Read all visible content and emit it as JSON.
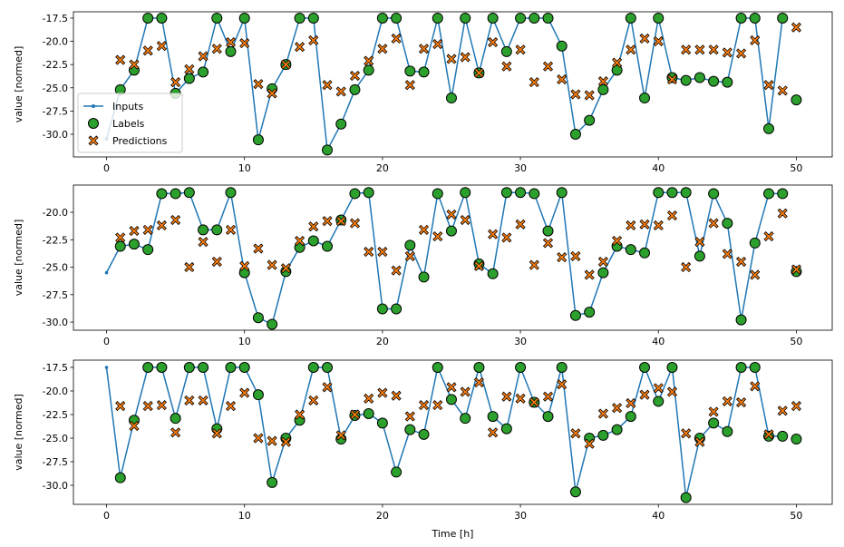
{
  "legend": {
    "inputs": "Inputs",
    "labels": "Labels",
    "predictions": "Predictions"
  },
  "colors": {
    "inputs": "#1f77b4",
    "labels": "#2ca02c",
    "predictions": "#ff7f0e",
    "edge": "#000000"
  },
  "chart_data": [
    {
      "type": "line",
      "xlabel": "",
      "ylabel": "value [normed]",
      "xlim": [
        -2.4,
        52.6
      ],
      "ylim": [
        -32.44,
        -16.82
      ],
      "xticks": [
        0,
        10,
        20,
        30,
        40,
        50
      ],
      "xtick_labels": [
        "0",
        "10",
        "20",
        "30",
        "40",
        "50"
      ],
      "yticks": [
        -17.5,
        -20,
        -22.5,
        -25,
        -27.5,
        -30
      ],
      "ytick_labels": [
        "-17.5",
        "-20.0",
        "-22.5",
        "-25.0",
        "-27.5",
        "-30.0"
      ],
      "legend_placement": "lower-left",
      "series": [
        {
          "name": "Inputs",
          "x_start": 0,
          "values": [
            -30.5,
            -25.2,
            -23.1,
            -17.5,
            -17.5,
            -25.6,
            -24.0,
            -23.3,
            -17.5,
            -21.1,
            -17.5,
            -30.6,
            -25.1,
            -22.5,
            -17.5,
            -17.5,
            -31.7,
            -28.9,
            -25.2,
            -23.1,
            -17.5,
            -17.5,
            -23.2,
            -23.3,
            -17.5,
            -26.1,
            -17.5,
            -23.4,
            -17.5,
            -21.1,
            -17.5,
            -17.5,
            -17.5,
            -20.5,
            -30.0,
            -28.5,
            -25.2,
            -23.1,
            -17.5,
            -26.1,
            -17.5,
            -23.9,
            -24.2,
            -23.9,
            -24.3,
            -24.4,
            -17.5,
            -17.5,
            -29.4,
            -17.5
          ]
        },
        {
          "name": "Labels",
          "x_start": 1,
          "values": [
            -25.2,
            -23.1,
            -17.5,
            -17.5,
            -25.6,
            -24.0,
            -23.3,
            -17.5,
            -21.1,
            -17.5,
            -30.6,
            -25.1,
            -22.5,
            -17.5,
            -17.5,
            -31.7,
            -28.9,
            -25.2,
            -23.1,
            -17.5,
            -17.5,
            -23.2,
            -23.3,
            -17.5,
            -26.1,
            -17.5,
            -23.4,
            -17.5,
            -21.1,
            -17.5,
            -17.5,
            -17.5,
            -20.5,
            -30.0,
            -28.5,
            -25.2,
            -23.1,
            -17.5,
            -26.1,
            -17.5,
            -23.9,
            -24.2,
            -23.9,
            -24.3,
            -24.4,
            -17.5,
            -17.5,
            -29.4,
            -17.5,
            -26.3
          ]
        },
        {
          "name": "Predictions",
          "x_start": 1,
          "values": [
            -22.0,
            -22.5,
            -21.0,
            -20.5,
            -24.4,
            -23.0,
            -21.6,
            -20.8,
            -20.1,
            -20.2,
            -24.6,
            -25.6,
            -22.5,
            -20.6,
            -19.9,
            -24.7,
            -25.4,
            -23.7,
            -22.1,
            -20.8,
            -19.7,
            -24.7,
            -20.8,
            -20.3,
            -21.9,
            -21.7,
            -23.4,
            -20.1,
            -22.7,
            -20.9,
            -24.4,
            -22.7,
            -24.1,
            -25.7,
            -25.8,
            -24.3,
            -22.3,
            -20.9,
            -19.7,
            -20.0,
            -24.1,
            -20.9,
            -20.9,
            -20.9,
            -21.2,
            -21.3,
            -19.9,
            -24.7,
            -25.3,
            -18.5
          ]
        }
      ]
    },
    {
      "type": "line",
      "xlabel": "",
      "ylabel": "value [normed]",
      "xlim": [
        -2.4,
        52.6
      ],
      "ylim": [
        -30.74,
        -17.52
      ],
      "xticks": [
        0,
        10,
        20,
        30,
        40,
        50
      ],
      "xtick_labels": [
        "0",
        "10",
        "20",
        "30",
        "40",
        "50"
      ],
      "yticks": [
        -20,
        -22.5,
        -25,
        -27.5,
        -30
      ],
      "ytick_labels": [
        "-20.0",
        "-22.5",
        "-25.0",
        "-27.5",
        "-30.0"
      ],
      "series": [
        {
          "name": "Inputs",
          "x_start": 0,
          "values": [
            -25.5,
            -23.1,
            -22.9,
            -23.4,
            -18.3,
            -18.3,
            -18.2,
            -21.6,
            -21.6,
            -18.2,
            -25.5,
            -29.6,
            -30.2,
            -25.4,
            -23.2,
            -22.6,
            -23.1,
            -20.7,
            -18.3,
            -18.2,
            -28.8,
            -28.8,
            -23.0,
            -25.9,
            -18.3,
            -21.7,
            -18.2,
            -24.7,
            -25.6,
            -18.2,
            -18.2,
            -18.3,
            -21.7,
            -18.2,
            -29.4,
            -29.1,
            -25.5,
            -23.1,
            -23.4,
            -23.7,
            -18.2,
            -18.2,
            -18.2,
            -24.0,
            -18.3,
            -21.0,
            -29.8,
            -22.8,
            -18.3,
            -18.3
          ]
        },
        {
          "name": "Labels",
          "x_start": 1,
          "values": [
            -23.1,
            -22.9,
            -23.4,
            -18.3,
            -18.3,
            -18.2,
            -21.6,
            -21.6,
            -18.2,
            -25.5,
            -29.6,
            -30.2,
            -25.4,
            -23.2,
            -22.6,
            -23.1,
            -20.7,
            -18.3,
            -18.2,
            -28.8,
            -28.8,
            -23.0,
            -25.9,
            -18.3,
            -21.7,
            -18.2,
            -24.7,
            -25.6,
            -18.2,
            -18.2,
            -18.3,
            -21.7,
            -18.2,
            -29.4,
            -29.1,
            -25.5,
            -23.1,
            -23.4,
            -23.7,
            -18.2,
            -18.2,
            -18.2,
            -24.0,
            -18.3,
            -21.0,
            -29.8,
            -22.8,
            -18.3,
            -18.3,
            -25.4
          ]
        },
        {
          "name": "Predictions",
          "x_start": 1,
          "values": [
            -22.3,
            -21.7,
            -21.6,
            -21.2,
            -20.7,
            -25.0,
            -22.7,
            -24.5,
            -21.6,
            -24.9,
            -23.3,
            -24.8,
            -25.1,
            -22.6,
            -21.3,
            -20.8,
            -20.8,
            -21.0,
            -23.6,
            -23.6,
            -25.3,
            -24.0,
            -21.6,
            -22.2,
            -20.2,
            -20.7,
            -24.9,
            -22.0,
            -22.3,
            -21.1,
            -24.8,
            -22.8,
            -24.1,
            -24.0,
            -25.7,
            -24.5,
            -22.6,
            -21.2,
            -21.1,
            -21.2,
            -20.3,
            -25.0,
            -22.7,
            -21.0,
            -23.8,
            -24.5,
            -25.7,
            -22.2,
            -20.1,
            -25.2
          ]
        }
      ]
    },
    {
      "type": "line",
      "xlabel": "Time [h]",
      "ylabel": "value [normed]",
      "xlim": [
        -2.4,
        52.6
      ],
      "ylim": [
        -32.02,
        -16.73
      ],
      "xticks": [
        0,
        10,
        20,
        30,
        40,
        50
      ],
      "xtick_labels": [
        "0",
        "10",
        "20",
        "30",
        "40",
        "50"
      ],
      "yticks": [
        -17.5,
        -20,
        -22.5,
        -25,
        -27.5,
        -30
      ],
      "ytick_labels": [
        "-17.5",
        "-20.0",
        "-22.5",
        "-25.0",
        "-27.5",
        "-30.0"
      ],
      "series": [
        {
          "name": "Inputs",
          "x_start": 0,
          "values": [
            -17.5,
            -29.2,
            -23.1,
            -17.5,
            -17.5,
            -22.9,
            -17.5,
            -17.5,
            -24.0,
            -17.5,
            -17.5,
            -20.4,
            -29.7,
            -25.0,
            -23.1,
            -17.5,
            -17.5,
            -25.1,
            -22.6,
            -22.4,
            -23.4,
            -28.6,
            -24.1,
            -24.6,
            -17.5,
            -20.9,
            -22.9,
            -17.5,
            -22.7,
            -24.0,
            -17.5,
            -21.2,
            -22.7,
            -17.5,
            -30.7,
            -25.0,
            -24.7,
            -24.1,
            -22.7,
            -17.5,
            -21.1,
            -17.5,
            -31.3,
            -25.0,
            -23.4,
            -24.3,
            -17.5,
            -17.5,
            -24.8,
            -24.8
          ]
        },
        {
          "name": "Labels",
          "x_start": 1,
          "values": [
            -29.2,
            -23.1,
            -17.5,
            -17.5,
            -22.9,
            -17.5,
            -17.5,
            -24.0,
            -17.5,
            -17.5,
            -20.4,
            -29.7,
            -25.0,
            -23.1,
            -17.5,
            -17.5,
            -25.1,
            -22.6,
            -22.4,
            -23.4,
            -28.6,
            -24.1,
            -24.6,
            -17.5,
            -20.9,
            -22.9,
            -17.5,
            -22.7,
            -24.0,
            -17.5,
            -21.2,
            -22.7,
            -17.5,
            -30.7,
            -25.0,
            -24.7,
            -24.1,
            -22.7,
            -17.5,
            -21.1,
            -17.5,
            -31.3,
            -25.0,
            -23.4,
            -24.3,
            -17.5,
            -17.5,
            -24.8,
            -24.8,
            -25.1
          ]
        },
        {
          "name": "Predictions",
          "x_start": 1,
          "values": [
            -21.6,
            -23.7,
            -21.6,
            -21.5,
            -24.4,
            -21.0,
            -21.0,
            -24.5,
            -21.6,
            -20.2,
            -25.0,
            -25.3,
            -25.4,
            -22.5,
            -21.0,
            -19.6,
            -24.7,
            -22.5,
            -20.8,
            -20.2,
            -20.5,
            -22.7,
            -21.5,
            -21.5,
            -19.6,
            -20.1,
            -19.1,
            -24.4,
            -20.6,
            -20.8,
            -21.2,
            -20.6,
            -19.3,
            -24.5,
            -25.6,
            -22.4,
            -21.8,
            -21.3,
            -20.4,
            -19.7,
            -20.1,
            -24.5,
            -25.4,
            -22.2,
            -21.1,
            -21.2,
            -19.5,
            -24.6,
            -22.1,
            -21.6
          ]
        }
      ]
    }
  ]
}
